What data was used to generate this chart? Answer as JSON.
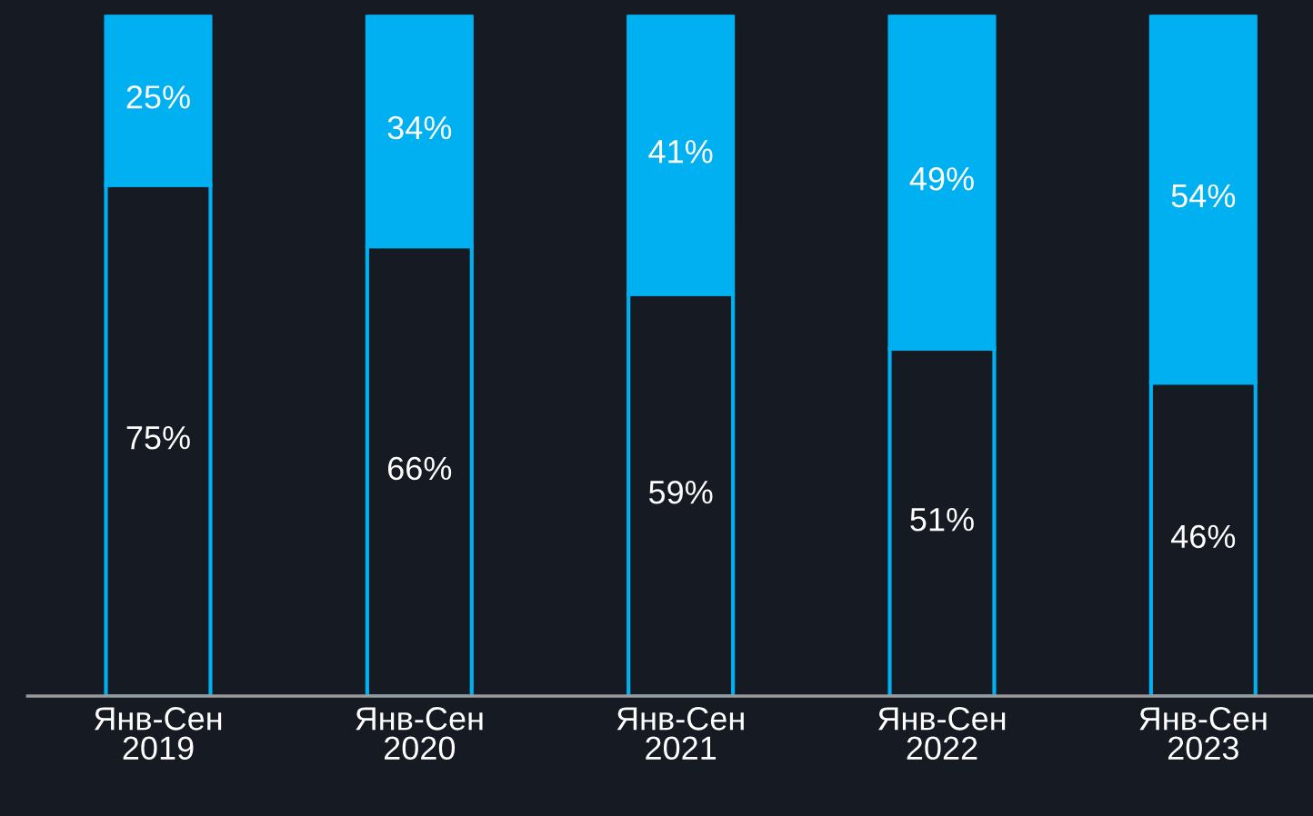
{
  "chart_data": {
    "type": "bar",
    "stacked": true,
    "tick_labels": "x",
    "legend": false,
    "grid": false,
    "categories": [
      "Янв-Сен\n2019",
      "Янв-Сен\n2020",
      "Янв-Сен\n2021",
      "Янв-Сен\n2022",
      "Янв-Сен\n2023"
    ],
    "series": [
      {
        "color": "#161a22",
        "values": [
          75,
          66,
          59,
          51,
          46
        ],
        "value_labels": [
          "75%",
          "66%",
          "59%",
          "51%",
          "46%"
        ]
      },
      {
        "color": "#00b0f0",
        "values": [
          25,
          34,
          41,
          49,
          54
        ],
        "value_labels": [
          "25%",
          "34%",
          "41%",
          "49%",
          "54%"
        ]
      }
    ]
  }
}
